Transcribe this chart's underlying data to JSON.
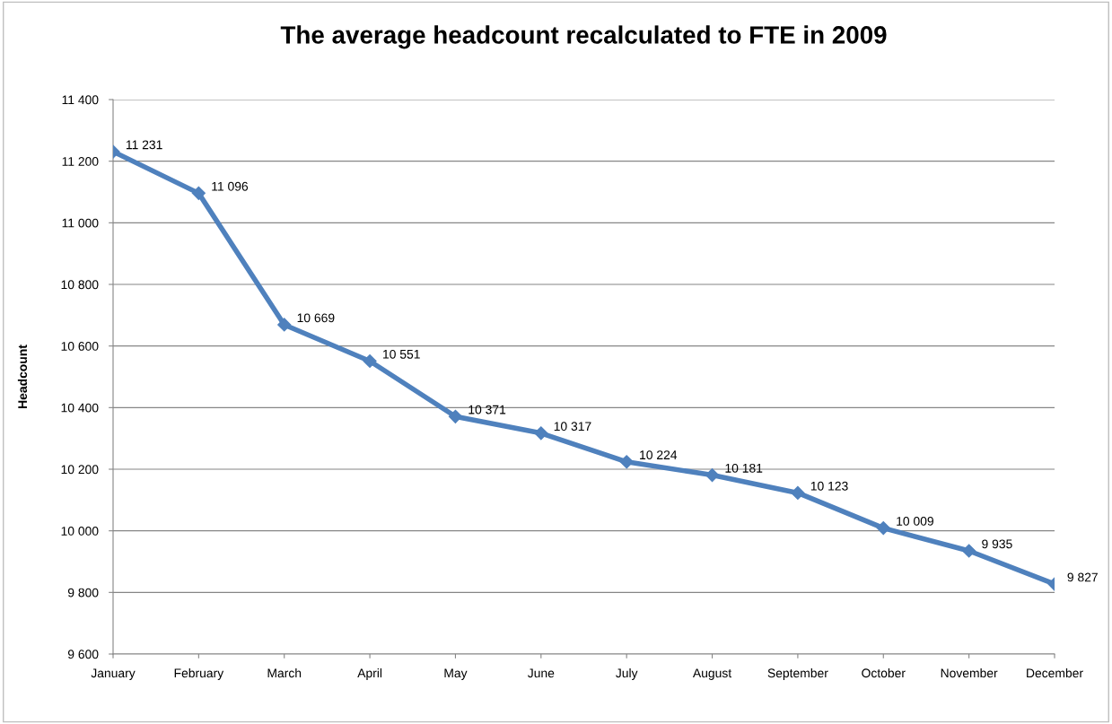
{
  "chart_data": {
    "type": "line",
    "title": "The average headcount recalculated to FTE in 2009",
    "ylabel": "Headcount",
    "categories": [
      "January",
      "February",
      "March",
      "April",
      "May",
      "June",
      "July",
      "August",
      "September",
      "October",
      "November",
      "December"
    ],
    "values": [
      11231,
      11096,
      10669,
      10551,
      10371,
      10317,
      10224,
      10181,
      10123,
      10009,
      9935,
      9827
    ],
    "value_labels": [
      "11 231",
      "11 096",
      "10 669",
      "10 551",
      "10 371",
      "10 317",
      "10 224",
      "10 181",
      "10 123",
      "10 009",
      "9 935",
      "9 827"
    ],
    "color": "#4f81bd",
    "marker": "diamond",
    "grid": "y",
    "legend": false,
    "ylim": [
      9600,
      11400
    ],
    "yticks": [
      {
        "value": 9600,
        "label": "9 600"
      },
      {
        "value": 9800,
        "label": "9 800"
      },
      {
        "value": 10000,
        "label": "10 000"
      },
      {
        "value": 10200,
        "label": "10 200"
      },
      {
        "value": 10400,
        "label": "10 400"
      },
      {
        "value": 10600,
        "label": "10 600"
      },
      {
        "value": 10800,
        "label": "10 800"
      },
      {
        "value": 11000,
        "label": "11 000"
      },
      {
        "value": 11200,
        "label": "11 200"
      },
      {
        "value": 11400,
        "label": "11 400"
      }
    ]
  }
}
